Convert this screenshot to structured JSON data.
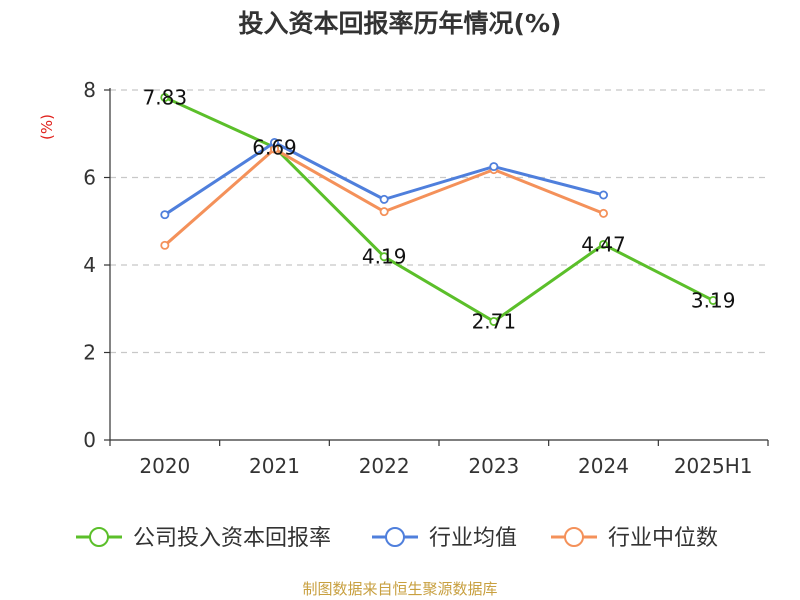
{
  "chart_data": {
    "type": "line",
    "title": "投入资本回报率历年情况(%)",
    "ylabel": "(%)",
    "xlabel": "",
    "categories": [
      "2020",
      "2021",
      "2022",
      "2023",
      "2024",
      "2025H1"
    ],
    "ylim": [
      0,
      8
    ],
    "yticks": [
      0,
      2,
      4,
      6,
      8
    ],
    "grid": true,
    "legend_position": "bottom",
    "series": [
      {
        "name": "公司投入资本回报率",
        "color": "#5bbf2a",
        "values": [
          7.83,
          6.69,
          4.19,
          2.71,
          4.47,
          3.19
        ],
        "labels": [
          "7.83",
          "6.69",
          "4.19",
          "2.71",
          "4.47",
          "3.19"
        ]
      },
      {
        "name": "行业均值",
        "color": "#4f7fdc",
        "values": [
          5.15,
          6.8,
          5.5,
          6.25,
          5.6,
          null
        ]
      },
      {
        "name": "行业中位数",
        "color": "#f4915a",
        "values": [
          4.45,
          6.65,
          5.22,
          6.18,
          5.18,
          null
        ]
      }
    ]
  },
  "source": "制图数据来自恒生聚源数据库"
}
